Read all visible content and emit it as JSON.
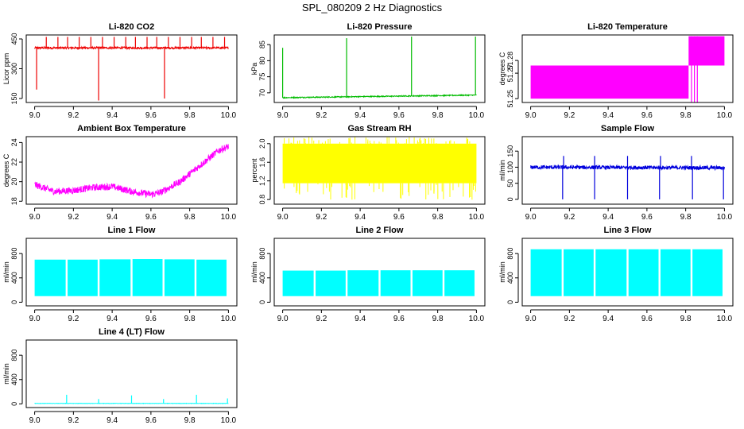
{
  "page_title": "SPL_080209  2 Hz Diagnostics",
  "colors": {
    "red": "#ee0000",
    "green": "#00bb00",
    "magenta": "#ff00ff",
    "yellow": "#ffff00",
    "blue": "#0000dd",
    "cyan": "#00ffff"
  },
  "chart_data": [
    {
      "id": "co2",
      "type": "line",
      "title": "Li-820 CO2",
      "ylabel": "Licor ppm",
      "xlim": [
        9.0,
        10.0
      ],
      "ylim": [
        130,
        470
      ],
      "xticks": [
        9.0,
        9.2,
        9.4,
        9.6,
        9.8,
        10.0
      ],
      "xtick_labels": [
        "9.0",
        "9.2",
        "9.4",
        "9.6",
        "9.8",
        "10.0"
      ],
      "yticks": [
        150,
        300,
        450
      ],
      "ytick_labels": [
        "150",
        "300",
        "450"
      ],
      "color": "red",
      "signal": {
        "kind": "noise",
        "base": [
          [
            9.0,
            405
          ],
          [
            10.0,
            405
          ]
        ],
        "amp": 5,
        "spikes_up": [
          9.06,
          9.12,
          9.17,
          9.23,
          9.29,
          9.35,
          9.41,
          9.47,
          9.52,
          9.58,
          9.63,
          9.69,
          9.75,
          9.81,
          9.86,
          9.92,
          9.98
        ],
        "spike_up_to": 460,
        "spikes_down": [
          9.01,
          9.33,
          9.67
        ],
        "spike_down_to": [
          195,
          140,
          150
        ]
      }
    },
    {
      "id": "pressure",
      "type": "line",
      "title": "Li-820 Pressure",
      "ylabel": "kPa",
      "xlim": [
        9.0,
        10.0
      ],
      "ylim": [
        67,
        88
      ],
      "xticks": [
        9.0,
        9.2,
        9.4,
        9.6,
        9.8,
        10.0
      ],
      "xtick_labels": [
        "9.0",
        "9.2",
        "9.4",
        "9.6",
        "9.8",
        "10.0"
      ],
      "yticks": [
        70,
        75,
        80,
        85
      ],
      "ytick_labels": [
        "70",
        "75",
        "80",
        "85"
      ],
      "color": "green",
      "signal": {
        "kind": "noise",
        "base": [
          [
            9.0,
            68.5
          ],
          [
            10.0,
            69.3
          ]
        ],
        "amp": 0.15,
        "spikes_up": [
          9.0,
          9.33,
          9.665,
          9.995
        ],
        "spike_up_to": [
          84,
          87,
          87.5,
          87.5
        ],
        "spikes_down": [],
        "spike_down_to": []
      }
    },
    {
      "id": "temperature",
      "type": "line",
      "title": "Li-820 Temperature",
      "ylabel": "degrees C",
      "xlim": [
        9.0,
        10.0
      ],
      "ylim": [
        51.247,
        51.3
      ],
      "xticks": [
        9.0,
        9.2,
        9.4,
        9.6,
        9.8,
        10.0
      ],
      "xtick_labels": [
        "9.0",
        "9.2",
        "9.4",
        "9.6",
        "9.8",
        "10.0"
      ],
      "yticks": [
        51.25,
        51.27,
        51.28
      ],
      "ytick_labels": [
        "51.25",
        "51.27",
        "51.28"
      ],
      "color": "magenta",
      "signal": {
        "kind": "blocks",
        "blocks": [
          {
            "x0": 9.0,
            "x1": 9.815,
            "y0": 51.25,
            "y1": 51.276
          },
          {
            "x0": 9.815,
            "x1": 10.0,
            "y0": 51.276,
            "y1": 51.299
          }
        ],
        "lines": [
          9.83,
          9.845,
          9.86
        ]
      }
    },
    {
      "id": "ambient",
      "type": "line",
      "title": "Ambient Box Temperature",
      "ylabel": "degrees C",
      "xlim": [
        9.0,
        10.0
      ],
      "ylim": [
        17.7,
        24.6
      ],
      "xticks": [
        9.0,
        9.2,
        9.4,
        9.6,
        9.8,
        10.0
      ],
      "xtick_labels": [
        "9.0",
        "9.2",
        "9.4",
        "9.6",
        "9.8",
        "10.0"
      ],
      "yticks": [
        18,
        20,
        22,
        24
      ],
      "ytick_labels": [
        "18",
        "20",
        "22",
        "24"
      ],
      "color": "magenta",
      "signal": {
        "kind": "noise",
        "base": [
          [
            9.0,
            19.7
          ],
          [
            9.1,
            19.0
          ],
          [
            9.2,
            19.1
          ],
          [
            9.3,
            19.4
          ],
          [
            9.4,
            19.5
          ],
          [
            9.5,
            19.0
          ],
          [
            9.6,
            18.7
          ],
          [
            9.65,
            18.9
          ],
          [
            9.75,
            20.0
          ],
          [
            9.85,
            21.6
          ],
          [
            9.95,
            23.2
          ],
          [
            10.0,
            23.6
          ]
        ],
        "amp": 0.35,
        "spikes_up": [],
        "spike_up_to": 0,
        "spikes_down": [],
        "spike_down_to": []
      }
    },
    {
      "id": "rh",
      "type": "line",
      "title": "Gas Stream RH",
      "ylabel": "percent",
      "xlim": [
        9.0,
        10.0
      ],
      "ylim": [
        0.7,
        2.15
      ],
      "xticks": [
        9.0,
        9.2,
        9.4,
        9.6,
        9.8,
        10.0
      ],
      "xtick_labels": [
        "9.0",
        "9.2",
        "9.4",
        "9.6",
        "9.8",
        "10.0"
      ],
      "yticks": [
        0.8,
        1.2,
        1.6,
        2.0
      ],
      "ytick_labels": [
        "0.8",
        "1.2",
        "1.6",
        "2.0"
      ],
      "color": "yellow",
      "signal": {
        "kind": "band",
        "bands": [
          [
            9.0,
            10.0,
            1.15,
            2.0
          ]
        ],
        "amp_out": 0.2
      }
    },
    {
      "id": "sample",
      "type": "line",
      "title": "Sample Flow",
      "ylabel": "ml/min",
      "xlim": [
        9.0,
        10.0
      ],
      "ylim": [
        -15,
        195
      ],
      "xticks": [
        9.0,
        9.2,
        9.4,
        9.6,
        9.8,
        10.0
      ],
      "xtick_labels": [
        "9.0",
        "9.2",
        "9.4",
        "9.6",
        "9.8",
        "10.0"
      ],
      "yticks": [
        0,
        50,
        100,
        150
      ],
      "ytick_labels": [
        "0",
        "50",
        "100",
        "150"
      ],
      "color": "blue",
      "signal": {
        "kind": "noise",
        "base": [
          [
            9.0,
            100
          ],
          [
            10.0,
            98
          ]
        ],
        "amp": 6,
        "spikes_up": [
          9.17,
          9.33,
          9.5,
          9.67,
          9.83
        ],
        "spike_up_to": 135,
        "spikes_down": [
          9.165,
          9.33,
          9.5,
          9.665,
          9.835,
          9.995
        ],
        "spike_down_to": 0
      }
    },
    {
      "id": "line1",
      "type": "line",
      "title": "Line 1 Flow",
      "ylabel": "ml/min",
      "xlim": [
        9.0,
        10.0
      ],
      "ylim": [
        -60,
        1050
      ],
      "xticks": [
        9.0,
        9.2,
        9.4,
        9.6,
        9.8,
        10.0
      ],
      "xtick_labels": [
        "9.0",
        "9.2",
        "9.4",
        "9.6",
        "9.8",
        "10.0"
      ],
      "yticks": [
        0,
        400,
        800
      ],
      "ytick_labels": [
        "0",
        "400",
        "800"
      ],
      "color": "cyan",
      "signal": {
        "kind": "band",
        "bands": [
          [
            9.0,
            9.16,
            100,
            700
          ],
          [
            9.17,
            9.325,
            100,
            700
          ],
          [
            9.335,
            9.495,
            100,
            705
          ],
          [
            9.505,
            9.66,
            100,
            710
          ],
          [
            9.67,
            9.825,
            100,
            705
          ],
          [
            9.835,
            9.99,
            100,
            700
          ]
        ],
        "amp_out": 0
      }
    },
    {
      "id": "line2",
      "type": "line",
      "title": "Line 2 Flow",
      "ylabel": "ml/min",
      "xlim": [
        9.0,
        10.0
      ],
      "ylim": [
        -60,
        1050
      ],
      "xticks": [
        9.0,
        9.2,
        9.4,
        9.6,
        9.8,
        10.0
      ],
      "xtick_labels": [
        "9.0",
        "9.2",
        "9.4",
        "9.6",
        "9.8",
        "10.0"
      ],
      "yticks": [
        0,
        400,
        800
      ],
      "ytick_labels": [
        "0",
        "400",
        "800"
      ],
      "color": "cyan",
      "signal": {
        "kind": "band",
        "bands": [
          [
            9.0,
            9.16,
            100,
            520
          ],
          [
            9.17,
            9.325,
            100,
            520
          ],
          [
            9.335,
            9.495,
            100,
            525
          ],
          [
            9.505,
            9.66,
            100,
            525
          ],
          [
            9.67,
            9.825,
            100,
            525
          ],
          [
            9.835,
            9.99,
            100,
            525
          ]
        ],
        "amp_out": 0
      }
    },
    {
      "id": "line3",
      "type": "line",
      "title": "Line 3 Flow",
      "ylabel": "ml/min",
      "xlim": [
        9.0,
        10.0
      ],
      "ylim": [
        -60,
        1050
      ],
      "xticks": [
        9.0,
        9.2,
        9.4,
        9.6,
        9.8,
        10.0
      ],
      "xtick_labels": [
        "9.0",
        "9.2",
        "9.4",
        "9.6",
        "9.8",
        "10.0"
      ],
      "yticks": [
        0,
        400,
        800
      ],
      "ytick_labels": [
        "0",
        "400",
        "800"
      ],
      "color": "cyan",
      "signal": {
        "kind": "band",
        "bands": [
          [
            9.0,
            9.16,
            100,
            870
          ],
          [
            9.17,
            9.325,
            100,
            870
          ],
          [
            9.335,
            9.495,
            100,
            870
          ],
          [
            9.505,
            9.66,
            100,
            870
          ],
          [
            9.67,
            9.825,
            100,
            870
          ],
          [
            9.835,
            9.99,
            100,
            870
          ]
        ],
        "amp_out": 0
      }
    },
    {
      "id": "line4",
      "type": "line",
      "title": "Line 4 (LT) Flow",
      "ylabel": "ml/min",
      "xlim": [
        9.0,
        10.0
      ],
      "ylim": [
        -60,
        1050
      ],
      "xticks": [
        9.0,
        9.2,
        9.4,
        9.6,
        9.8,
        10.0
      ],
      "xtick_labels": [
        "9.0",
        "9.2",
        "9.4",
        "9.6",
        "9.8",
        "10.0"
      ],
      "yticks": [
        0,
        400,
        800
      ],
      "ytick_labels": [
        "0",
        "400",
        "800"
      ],
      "color": "cyan",
      "signal": {
        "kind": "noise",
        "base": [
          [
            9.0,
            8
          ],
          [
            10.0,
            8
          ]
        ],
        "amp": 3,
        "spikes_up": [
          9.165,
          9.33,
          9.5,
          9.665,
          9.835,
          9.995
        ],
        "spike_up_to": [
          150,
          80,
          140,
          80,
          150,
          90
        ],
        "spikes_down": [],
        "spike_down_to": []
      }
    }
  ]
}
